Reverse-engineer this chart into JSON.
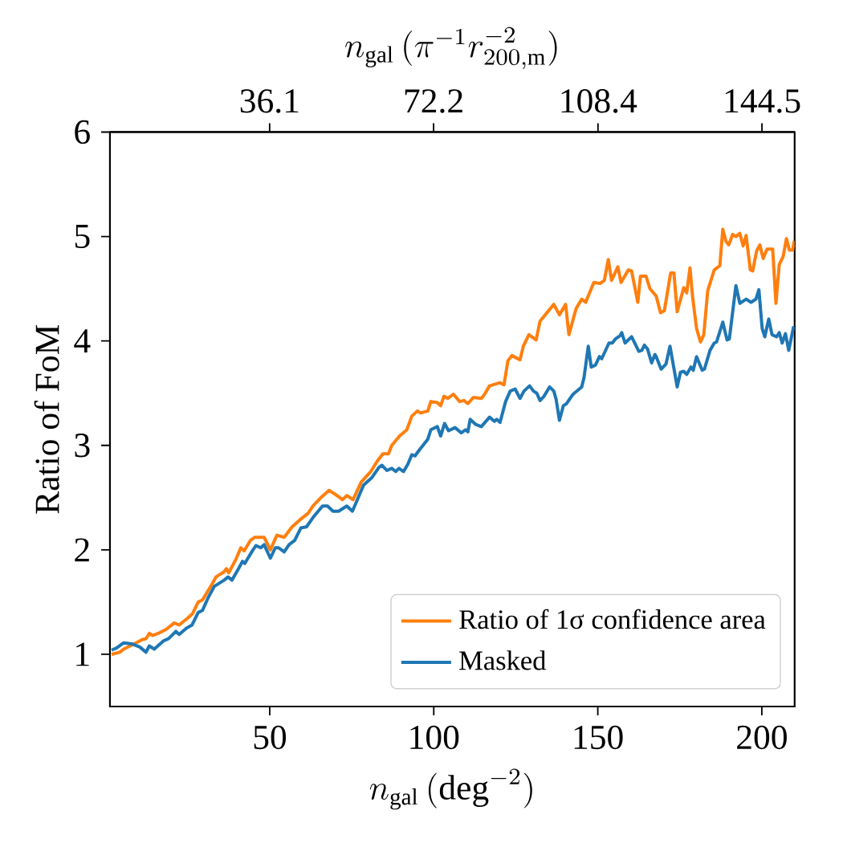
{
  "chart_data": {
    "type": "line",
    "xlabel": "n_{\\mathrm{gal}}\\,(\\mathrm{deg}^{-2})",
    "x2label": "n_{\\mathrm{gal}}\\,(\\pi^{-1}r_{200,\\mathrm{m}}^{-2})",
    "ylabel": "Ratio of FoM",
    "xlim": [
      1.3,
      210
    ],
    "ylim": [
      0.5,
      6
    ],
    "xticks": [
      50,
      100,
      150,
      200
    ],
    "yticks": [
      1,
      2,
      3,
      4,
      5,
      6
    ],
    "x2lim": [
      0.94,
      151.7
    ],
    "x2ticks": [
      36.1,
      72.2,
      108.4,
      144.5
    ],
    "legend": "bottom right",
    "series": [
      {
        "name": "Ratio of 1σ confidence area",
        "color": "#ff7f0e",
        "x": [
          1.8,
          4.3,
          5.5,
          8.7,
          11.1,
          12.3,
          13.3,
          14.3,
          16.0,
          18.5,
          20.9,
          22.4,
          25.1,
          26.5,
          28.2,
          29.5,
          32.4,
          33.6,
          36.1,
          36.8,
          37.5,
          39.7,
          41.2,
          42.2,
          44.1,
          45.4,
          46.1,
          48.3,
          50.2,
          52.2,
          54.4,
          56.8,
          59.3,
          61.7,
          63.2,
          65.6,
          68.1,
          70.5,
          72.2,
          73.5,
          75.4,
          77.9,
          80.8,
          82.8,
          84.5,
          86.2,
          87.2,
          89.6,
          91.8,
          93.3,
          95.0,
          96.0,
          98.2,
          99.1,
          101.1,
          102.1,
          103.1,
          104.3,
          106.0,
          107.9,
          109.2,
          110.4,
          112.1,
          114.5,
          115.3,
          117.0,
          120.2,
          121.4,
          122.6,
          123.8,
          126.3,
          127.3,
          129.0,
          131.2,
          132.4,
          136.6,
          138.3,
          140.2,
          141.2,
          143.4,
          145.1,
          146.3,
          148.8,
          150.7,
          152.0,
          153.2,
          154.2,
          156.1,
          157.1,
          159.3,
          160.3,
          162.2,
          163.0,
          164.7,
          165.9,
          167.8,
          169.1,
          170.3,
          172.2,
          173.2,
          174.2,
          176.2,
          177.1,
          178.1,
          178.9,
          180.1,
          181.3,
          182.3,
          183.5,
          185.5,
          187.2,
          188.1,
          189.1,
          189.9,
          191.1,
          192.1,
          193.3,
          194.3,
          195.2,
          196.5,
          197.2,
          198.4,
          199.4,
          200.4,
          201.6,
          203.3,
          204.3,
          205.3,
          206.5,
          207.5,
          208.4,
          209.4,
          209.9
        ],
        "values": [
          1.0,
          1.02,
          1.05,
          1.1,
          1.14,
          1.15,
          1.2,
          1.18,
          1.2,
          1.24,
          1.3,
          1.28,
          1.35,
          1.39,
          1.5,
          1.52,
          1.67,
          1.74,
          1.79,
          1.82,
          1.78,
          1.91,
          2.02,
          1.99,
          2.09,
          2.12,
          2.12,
          2.12,
          2.0,
          2.14,
          2.12,
          2.22,
          2.29,
          2.35,
          2.42,
          2.5,
          2.57,
          2.52,
          2.48,
          2.52,
          2.48,
          2.65,
          2.75,
          2.85,
          2.92,
          2.92,
          3.0,
          3.09,
          3.15,
          3.28,
          3.33,
          3.31,
          3.33,
          3.42,
          3.41,
          3.38,
          3.47,
          3.45,
          3.49,
          3.42,
          3.43,
          3.4,
          3.46,
          3.45,
          3.48,
          3.57,
          3.6,
          3.58,
          3.81,
          3.86,
          3.82,
          3.95,
          4.06,
          4.01,
          4.19,
          4.35,
          4.25,
          4.35,
          4.06,
          4.31,
          4.4,
          4.37,
          4.56,
          4.55,
          4.58,
          4.78,
          4.58,
          4.71,
          4.56,
          4.68,
          4.67,
          4.37,
          4.62,
          4.62,
          4.5,
          4.43,
          4.27,
          4.29,
          4.65,
          4.65,
          4.28,
          4.51,
          4.46,
          4.7,
          4.42,
          4.12,
          3.99,
          4.06,
          4.48,
          4.68,
          4.72,
          5.07,
          4.95,
          4.92,
          5.02,
          5.0,
          5.03,
          4.91,
          5.01,
          4.68,
          4.67,
          4.86,
          4.92,
          4.79,
          4.88,
          4.88,
          4.36,
          4.73,
          4.81,
          4.98,
          4.87,
          4.87,
          4.96
        ]
      },
      {
        "name": "Masked",
        "color": "#1f77b4",
        "x": [
          1.8,
          3.3,
          5.5,
          7.9,
          10.4,
          12.3,
          13.3,
          14.8,
          17.7,
          19.2,
          21.4,
          22.4,
          24.6,
          26.3,
          28.2,
          29.5,
          31.2,
          33.1,
          36.1,
          37.3,
          38.5,
          40.5,
          41.7,
          42.4,
          44.9,
          45.8,
          47.3,
          48.3,
          50.2,
          51.7,
          52.7,
          54.4,
          55.9,
          57.6,
          59.5,
          61.2,
          63.2,
          66.1,
          67.6,
          69.3,
          71.0,
          73.5,
          75.2,
          76.7,
          78.6,
          81.1,
          83.3,
          84.2,
          85.7,
          87.2,
          88.4,
          89.4,
          90.8,
          92.1,
          93.3,
          94.3,
          95.7,
          98.2,
          99.1,
          101.1,
          102.1,
          103.3,
          104.5,
          106.5,
          108.4,
          109.7,
          110.4,
          111.1,
          112.8,
          114.5,
          117.0,
          118.5,
          119.2,
          120.2,
          121.9,
          123.3,
          124.8,
          126.3,
          127.5,
          129.2,
          130.4,
          131.4,
          132.4,
          133.6,
          135.3,
          136.6,
          137.3,
          138.3,
          139.5,
          140.5,
          142.2,
          143.2,
          145.1,
          145.8,
          147.1,
          148.0,
          149.3,
          150.5,
          151.2,
          153.4,
          154.4,
          155.4,
          156.8,
          157.3,
          158.3,
          160.3,
          162.5,
          163.4,
          164.2,
          165.2,
          166.4,
          167.4,
          167.8,
          169.3,
          170.8,
          172.0,
          174.2,
          175.2,
          176.2,
          177.1,
          178.4,
          179.1,
          180.1,
          181.8,
          182.5,
          184.2,
          185.5,
          186.2,
          188.1,
          189.4,
          190.1,
          192.1,
          193.3,
          195.2,
          196.7,
          198.2,
          199.1,
          200.1,
          200.9,
          202.1,
          203.1,
          204.5,
          205.3,
          206.2,
          207.2,
          208.2,
          209.7
        ],
        "values": [
          1.04,
          1.06,
          1.11,
          1.1,
          1.07,
          1.02,
          1.08,
          1.05,
          1.13,
          1.15,
          1.22,
          1.19,
          1.25,
          1.28,
          1.4,
          1.42,
          1.54,
          1.65,
          1.71,
          1.74,
          1.71,
          1.82,
          1.89,
          1.87,
          2.0,
          2.04,
          2.02,
          2.05,
          1.92,
          2.02,
          2.02,
          1.98,
          2.05,
          2.09,
          2.21,
          2.22,
          2.31,
          2.42,
          2.42,
          2.37,
          2.37,
          2.42,
          2.37,
          2.48,
          2.62,
          2.69,
          2.79,
          2.81,
          2.76,
          2.78,
          2.75,
          2.78,
          2.75,
          2.82,
          2.91,
          2.9,
          2.96,
          3.06,
          3.15,
          3.18,
          3.09,
          3.21,
          3.14,
          3.17,
          3.12,
          3.15,
          3.13,
          3.25,
          3.2,
          3.18,
          3.27,
          3.23,
          3.25,
          3.22,
          3.42,
          3.52,
          3.54,
          3.45,
          3.52,
          3.57,
          3.52,
          3.5,
          3.43,
          3.47,
          3.56,
          3.52,
          3.44,
          3.24,
          3.38,
          3.4,
          3.48,
          3.51,
          3.56,
          3.65,
          3.95,
          3.75,
          3.77,
          3.85,
          3.83,
          3.98,
          3.98,
          4.02,
          4.05,
          4.08,
          3.98,
          4.04,
          3.9,
          3.91,
          3.96,
          3.92,
          3.79,
          3.87,
          3.85,
          3.73,
          3.78,
          3.95,
          3.56,
          3.7,
          3.71,
          3.68,
          3.75,
          3.72,
          3.85,
          3.72,
          3.73,
          3.91,
          3.98,
          3.99,
          4.18,
          4.01,
          4.02,
          4.53,
          4.36,
          4.4,
          4.37,
          4.4,
          4.49,
          4.12,
          4.04,
          4.21,
          4.06,
          4.04,
          4.08,
          3.98,
          4.07,
          3.91,
          4.14
        ]
      }
    ]
  }
}
